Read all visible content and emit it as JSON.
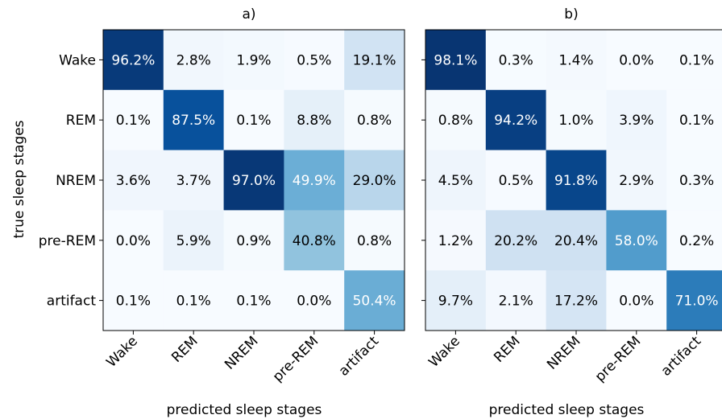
{
  "chart_data": [
    {
      "type": "heatmap",
      "title": "a)",
      "xlabel": "predicted sleep stages",
      "ylabel": "true sleep stages",
      "x_categories": [
        "Wake",
        "REM",
        "NREM",
        "pre-REM",
        "artifact"
      ],
      "y_categories": [
        "Wake",
        "REM",
        "NREM",
        "pre-REM",
        "artifact"
      ],
      "values": [
        [
          96.2,
          2.8,
          1.9,
          0.5,
          19.1
        ],
        [
          0.1,
          87.5,
          0.1,
          8.8,
          0.8
        ],
        [
          3.6,
          3.7,
          97.0,
          49.9,
          29.0
        ],
        [
          0.0,
          5.9,
          0.9,
          40.8,
          0.8
        ],
        [
          0.1,
          0.1,
          0.1,
          0.0,
          50.4
        ]
      ],
      "labels": [
        [
          "96.2%",
          "2.8%",
          "1.9%",
          "0.5%",
          "19.1%"
        ],
        [
          "0.1%",
          "87.5%",
          "0.1%",
          "8.8%",
          "0.8%"
        ],
        [
          "3.6%",
          "3.7%",
          "97.0%",
          "49.9%",
          "29.0%"
        ],
        [
          "0.0%",
          "5.9%",
          "0.9%",
          "40.8%",
          "0.8%"
        ],
        [
          "0.1%",
          "0.1%",
          "0.1%",
          "0.0%",
          "50.4%"
        ]
      ]
    },
    {
      "type": "heatmap",
      "title": "b)",
      "xlabel": "predicted sleep stages",
      "ylabel": "",
      "x_categories": [
        "Wake",
        "REM",
        "NREM",
        "pre-REM",
        "artifact"
      ],
      "y_categories": [
        "Wake",
        "REM",
        "NREM",
        "pre-REM",
        "artifact"
      ],
      "values": [
        [
          98.1,
          0.3,
          1.4,
          0.0,
          0.1
        ],
        [
          0.8,
          94.2,
          1.0,
          3.9,
          0.1
        ],
        [
          4.5,
          0.5,
          91.8,
          2.9,
          0.3
        ],
        [
          1.2,
          20.2,
          20.4,
          58.0,
          0.2
        ],
        [
          9.7,
          2.1,
          17.2,
          0.0,
          71.0
        ]
      ],
      "labels": [
        [
          "98.1%",
          "0.3%",
          "1.4%",
          "0.0%",
          "0.1%"
        ],
        [
          "0.8%",
          "94.2%",
          "1.0%",
          "3.9%",
          "0.1%"
        ],
        [
          "4.5%",
          "0.5%",
          "91.8%",
          "2.9%",
          "0.3%"
        ],
        [
          "1.2%",
          "20.2%",
          "20.4%",
          "58.0%",
          "0.2%"
        ],
        [
          "9.7%",
          "2.1%",
          "17.2%",
          "0.0%",
          "71.0%"
        ]
      ]
    }
  ],
  "colormap": {
    "name": "Blues",
    "stops": [
      "#f7fbff",
      "#deebf7",
      "#c6dbef",
      "#9ecae1",
      "#6baed6",
      "#4292c6",
      "#2171b5",
      "#08519c",
      "#08306b"
    ],
    "text_dark": "#000000",
    "text_light": "#ffffff"
  }
}
